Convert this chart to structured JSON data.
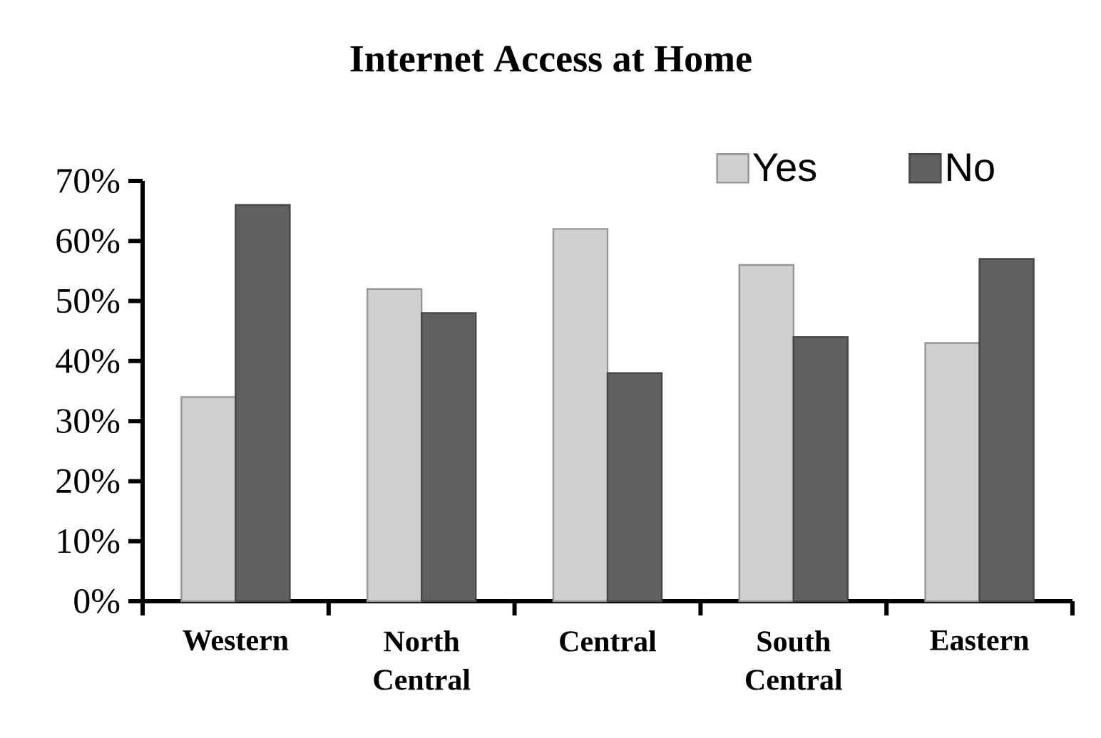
{
  "chart_data": {
    "type": "bar",
    "title": "Internet Access at Home",
    "categories": [
      "Western",
      "North Central",
      "Central",
      "South Central",
      "Eastern"
    ],
    "series": [
      {
        "name": "Yes",
        "color": "#d0d0d0",
        "values": [
          34,
          52,
          62,
          56,
          43
        ]
      },
      {
        "name": "No",
        "color": "#606060",
        "values": [
          66,
          48,
          38,
          44,
          57
        ]
      }
    ],
    "ylim": [
      0,
      70
    ],
    "yticks": [
      {
        "value": 0,
        "label": "0%"
      },
      {
        "value": 10,
        "label": "10%"
      },
      {
        "value": 20,
        "label": "20%"
      },
      {
        "value": 30,
        "label": "30%"
      },
      {
        "value": 40,
        "label": "40%"
      },
      {
        "value": 50,
        "label": "50%"
      },
      {
        "value": 60,
        "label": "60%"
      },
      {
        "value": 70,
        "label": "70%"
      }
    ],
    "legend": "top right"
  }
}
